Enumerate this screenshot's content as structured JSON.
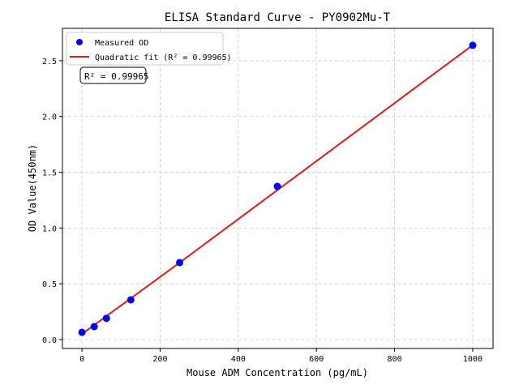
{
  "chart_data": {
    "type": "scatter",
    "title": "ELISA Standard Curve - PY0902Mu-T",
    "xlabel": "Mouse ADM Concentration (pg/mL)",
    "ylabel": "OD Value(450nm)",
    "xlim": [
      -50,
      1052
    ],
    "ylim": [
      -0.08,
      2.79
    ],
    "xticks": [
      0,
      200,
      400,
      600,
      800,
      1000
    ],
    "yticks": [
      0.0,
      0.5,
      1.0,
      1.5,
      2.0,
      2.5
    ],
    "xtick_labels": [
      "0",
      "200",
      "400",
      "600",
      "800",
      "1000"
    ],
    "ytick_labels": [
      "0.0",
      "0.5",
      "1.0",
      "1.5",
      "2.0",
      "2.5"
    ],
    "grid": true,
    "legend_position": "top-left",
    "series": [
      {
        "name": "Measured OD",
        "kind": "scatter",
        "color": "#0000ff",
        "x": [
          0,
          31.25,
          62.5,
          125,
          250,
          500,
          1000
        ],
        "y": [
          0.065,
          0.116,
          0.19,
          0.356,
          0.69,
          1.373,
          2.638
        ]
      },
      {
        "name": "Quadratic fit (R² = 0.99965)",
        "kind": "line",
        "color": "#e31a1c",
        "x": [
          0,
          250,
          500,
          750,
          1000
        ],
        "y": [
          0.05,
          0.69,
          1.34,
          1.99,
          2.64
        ]
      }
    ],
    "annotation": "R² = 0.99965"
  }
}
